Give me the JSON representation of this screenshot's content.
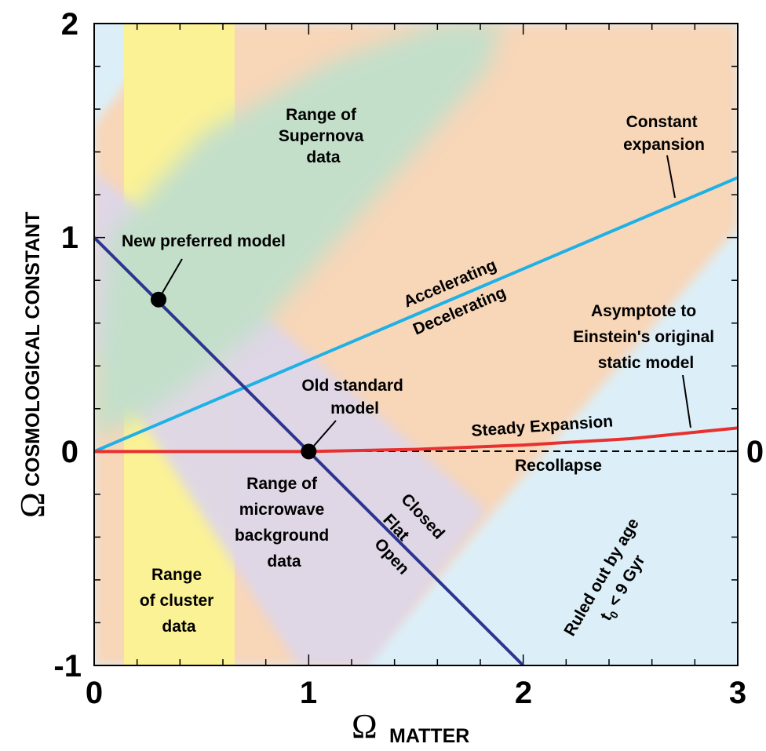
{
  "chart_data": {
    "type": "line",
    "xlabel": {
      "symbol": "Ω",
      "text": "MATTER"
    },
    "ylabel": {
      "symbol": "Ω",
      "text": "COSMOLOGICAL CONSTANT"
    },
    "xlim": [
      0,
      3
    ],
    "ylim": [
      -1,
      2
    ],
    "x_ticks": [
      "0",
      "1",
      "2",
      "3"
    ],
    "y_ticks": [
      "-1",
      "0",
      "1",
      "2"
    ],
    "right_tick": "0",
    "colors": {
      "background_blue": "#dceff8",
      "orange": "#f8d6b8",
      "yellow": "#fbf195",
      "green": "#c3dfca",
      "purple": "#dcd6ea",
      "cyan_line": "#1fb1e6",
      "red_line": "#e8312f",
      "navy_line": "#2c3690"
    },
    "series": [
      {
        "key": "constant",
        "color": "#1fb1e6",
        "x": [
          0,
          3
        ],
        "y": [
          0,
          1.28
        ]
      },
      {
        "key": "flat",
        "color": "#2c3690",
        "x": [
          0,
          2
        ],
        "y": [
          1,
          -1
        ]
      },
      {
        "key": "static",
        "color": "#e8312f",
        "x": [
          0,
          1,
          1.5,
          2,
          2.5,
          3
        ],
        "y": [
          0,
          0,
          0.01,
          0.03,
          0.06,
          0.11
        ]
      }
    ],
    "points": [
      {
        "x": 0.3,
        "y": 0.71,
        "label": "New preferred model"
      },
      {
        "x": 1.0,
        "y": 0.0,
        "label": "Old standard model"
      }
    ],
    "annotations": {
      "supernova": [
        "Range of",
        "Supernova",
        "data"
      ],
      "constant": [
        "Constant",
        "expansion"
      ],
      "new_model": "New preferred model",
      "accelerating": "Accelerating",
      "decelerating": "Decelerating",
      "asymptote": [
        "Asymptote to",
        "Einstein's original",
        "static model"
      ],
      "old_model": [
        "Old standard",
        "model"
      ],
      "steady": "Steady Expansion",
      "recollapse": "Recollapse",
      "microwave": [
        "Range of",
        "microwave",
        "background",
        "data"
      ],
      "closed": "Closed",
      "flat": "Flat",
      "open": "Open",
      "cluster": [
        "Range",
        "of cluster",
        "data"
      ],
      "ruled_out": "Ruled out by age",
      "ruled_t": "t",
      "ruled_sub": "0",
      "ruled_rest": " < 9 Gyr"
    }
  }
}
